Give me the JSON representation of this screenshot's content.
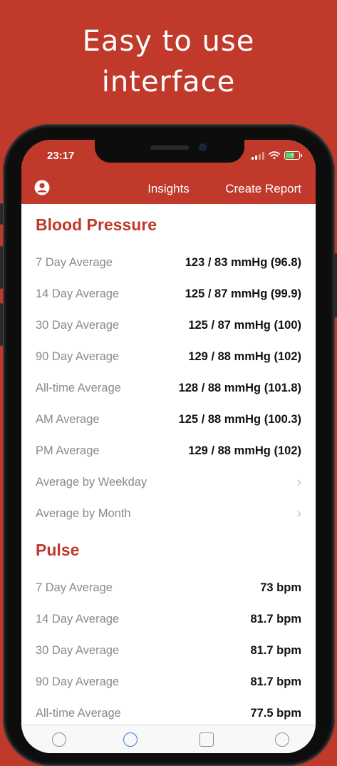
{
  "headline": {
    "line1": "Easy to use",
    "line2": "interface"
  },
  "status_bar": {
    "time": "23:17",
    "icons": [
      "signal-icon",
      "wifi-icon",
      "battery-charging-icon"
    ]
  },
  "nav": {
    "user_icon": "user-circle-icon",
    "title": "Insights",
    "right_action": "Create Report"
  },
  "blood_pressure": {
    "title": "Blood Pressure",
    "rows": [
      {
        "label": "7 Day Average",
        "value": "123 / 83 mmHg (96.8)"
      },
      {
        "label": "14 Day Average",
        "value": "125 / 87 mmHg (99.9)"
      },
      {
        "label": "30 Day Average",
        "value": "125 / 87 mmHg (100)"
      },
      {
        "label": "90 Day Average",
        "value": "129 / 88 mmHg (102)"
      },
      {
        "label": "All-time Average",
        "value": "128 / 88 mmHg (101.8)"
      },
      {
        "label": "AM Average",
        "value": "125 / 88 mmHg (100.3)"
      },
      {
        "label": "PM Average",
        "value": "129 / 88 mmHg (102)"
      }
    ],
    "links": [
      {
        "label": "Average by Weekday"
      },
      {
        "label": "Average by Month"
      }
    ]
  },
  "pulse": {
    "title": "Pulse",
    "rows": [
      {
        "label": "7 Day Average",
        "value": "73 bpm"
      },
      {
        "label": "14 Day Average",
        "value": "81.7 bpm"
      },
      {
        "label": "30 Day Average",
        "value": "81.7 bpm"
      },
      {
        "label": "90 Day Average",
        "value": "81.7 bpm"
      },
      {
        "label": "All-time Average",
        "value": "77.5 bpm"
      }
    ]
  },
  "colors": {
    "brand": "#c0392b",
    "label_gray": "#8a8a8a",
    "value_black": "#111111"
  }
}
